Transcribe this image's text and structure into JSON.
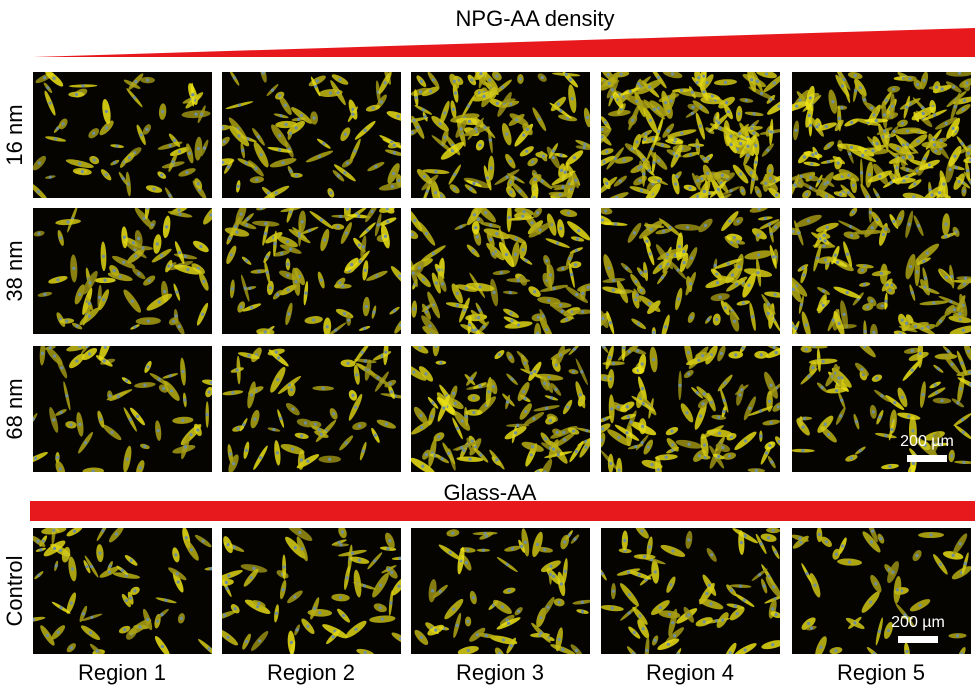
{
  "header": {
    "title": "NPG-AA density"
  },
  "rows": [
    "16 nm",
    "38 nm",
    "68 nm"
  ],
  "control": {
    "label": "Control",
    "title": "Glass-AA"
  },
  "columns": [
    "Region 1",
    "Region 2",
    "Region 3",
    "Region 4",
    "Region 5"
  ],
  "scale_bars": [
    "200 µm",
    "200 µm"
  ]
}
